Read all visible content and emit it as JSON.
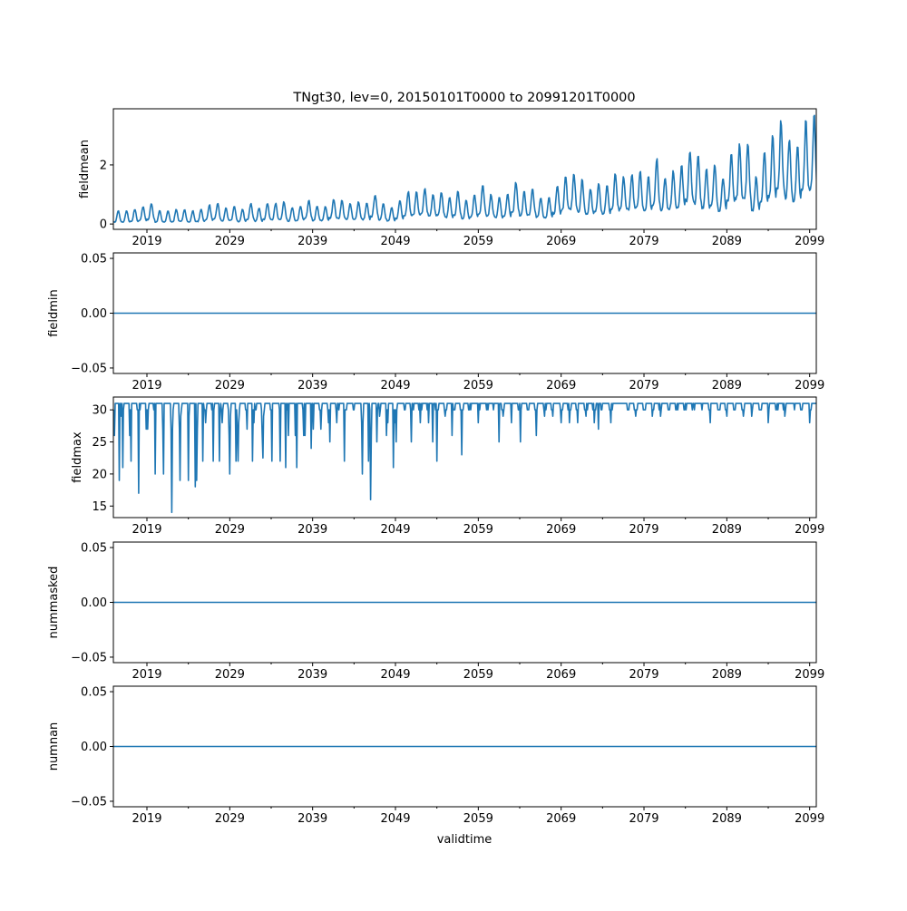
{
  "chart_data": {
    "type": "line",
    "title": "TNgt30, lev=0, 20150101T0000 to 20991201T0000",
    "xlabel": "validtime",
    "x_range": [
      2014.95,
      2099.8
    ],
    "x_ticks": [
      "2019",
      "2029",
      "2039",
      "2049",
      "2059",
      "2069",
      "2079",
      "2089",
      "2099"
    ],
    "line_color": "#1f77b4",
    "panels": [
      {
        "ylabel": "fieldmean",
        "ylim": [
          -0.18,
          3.9
        ],
        "y_ticks": [
          "0",
          "2"
        ],
        "y_tick_values": [
          0,
          2
        ],
        "series": {
          "kind": "seasonal",
          "start_year": 2015,
          "annual_peaks": [
            0.45,
            0.45,
            0.5,
            0.6,
            0.7,
            0.45,
            0.45,
            0.5,
            0.5,
            0.45,
            0.5,
            0.65,
            0.7,
            0.55,
            0.6,
            0.5,
            0.7,
            0.55,
            0.7,
            0.7,
            0.75,
            0.55,
            0.6,
            0.8,
            0.6,
            0.6,
            0.85,
            0.8,
            0.7,
            0.75,
            0.7,
            1.0,
            0.7,
            0.55,
            0.8,
            1.1,
            1.1,
            1.2,
            1.0,
            1.1,
            0.9,
            1.1,
            0.8,
            1.0,
            1.3,
            1.0,
            0.9,
            1.0,
            1.4,
            1.1,
            1.2,
            0.9,
            0.9,
            1.3,
            1.6,
            1.7,
            1.5,
            1.2,
            1.4,
            1.3,
            1.7,
            1.6,
            1.7,
            1.8,
            1.6,
            2.2,
            1.6,
            1.8,
            2.0,
            2.5,
            2.3,
            1.9,
            2.0,
            1.6,
            2.4,
            2.7,
            2.7,
            1.6,
            2.4,
            3.0,
            3.5,
            2.9,
            2.6,
            3.5,
            3.7
          ]
        }
      },
      {
        "ylabel": "fieldmin",
        "ylim": [
          -0.055,
          0.055
        ],
        "y_ticks": [
          "−0.05",
          "0.00",
          "0.05"
        ],
        "y_tick_values": [
          -0.05,
          0,
          0.05
        ],
        "series": {
          "kind": "constant",
          "value": 0
        }
      },
      {
        "ylabel": "fieldmax",
        "ylim": [
          13.2,
          32
        ],
        "y_ticks": [
          "15",
          "20",
          "25",
          "30"
        ],
        "y_tick_values": [
          15,
          20,
          25,
          30
        ],
        "series": {
          "kind": "dips",
          "base": [
            30,
            31
          ],
          "dips": [
            [
              2015.68,
              19
            ],
            [
              2016.05,
              21
            ],
            [
              2017.07,
              22
            ],
            [
              2017.98,
              17
            ],
            [
              2019.99,
              20
            ],
            [
              2020.97,
              20
            ],
            [
              2021.99,
              14
            ],
            [
              2022.98,
              19
            ],
            [
              2023.97,
              19
            ],
            [
              2024.8,
              18
            ],
            [
              2024.99,
              19
            ],
            [
              2025.72,
              22
            ],
            [
              2027.0,
              22
            ],
            [
              2027.73,
              22
            ],
            [
              2029.0,
              20
            ],
            [
              2029.74,
              22
            ],
            [
              2030.03,
              22
            ],
            [
              2031.74,
              22
            ],
            [
              2033.02,
              22.5
            ],
            [
              2034.12,
              22
            ],
            [
              2035.1,
              22
            ],
            [
              2035.76,
              21
            ],
            [
              2037.11,
              21
            ],
            [
              2038.86,
              24
            ],
            [
              2039.96,
              27
            ],
            [
              2041.05,
              25
            ],
            [
              2042.8,
              22
            ],
            [
              2044.99,
              20
            ],
            [
              2045.72,
              22
            ],
            [
              2045.98,
              16
            ],
            [
              2046.71,
              25
            ],
            [
              2048.72,
              21
            ],
            [
              2049.08,
              25
            ],
            [
              2050.9,
              25
            ],
            [
              2054.01,
              22
            ],
            [
              2055.84,
              26
            ],
            [
              2053.5,
              25
            ],
            [
              2057.0,
              23
            ],
            [
              2061.5,
              25
            ],
            [
              2064.1,
              25
            ],
            [
              2066.0,
              26
            ],
            [
              2073.5,
              27
            ]
          ]
        }
      },
      {
        "ylabel": "nummasked",
        "ylim": [
          -0.055,
          0.055
        ],
        "y_ticks": [
          "−0.05",
          "0.00",
          "0.05"
        ],
        "y_tick_values": [
          -0.05,
          0,
          0.05
        ],
        "series": {
          "kind": "constant",
          "value": 0
        }
      },
      {
        "ylabel": "numnan",
        "ylim": [
          -0.055,
          0.055
        ],
        "y_ticks": [
          "−0.05",
          "0.00",
          "0.05"
        ],
        "y_tick_values": [
          -0.05,
          0,
          0.05
        ],
        "series": {
          "kind": "constant",
          "value": 0
        }
      }
    ]
  }
}
